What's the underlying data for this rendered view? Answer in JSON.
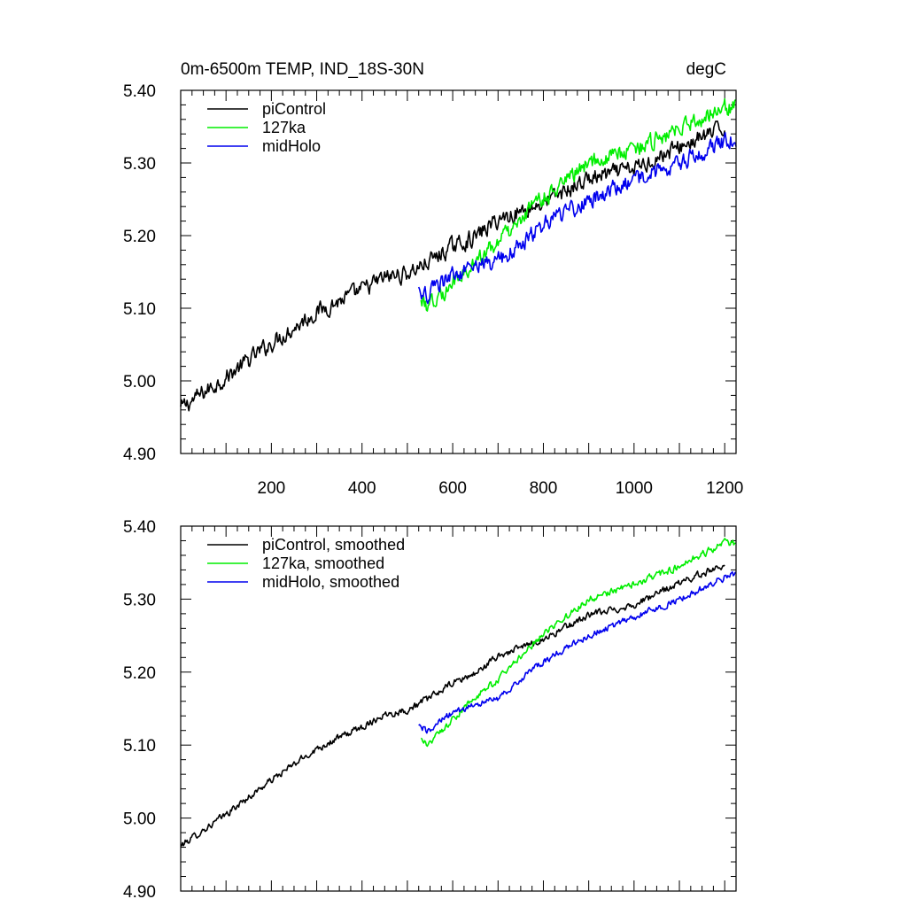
{
  "chart_data": [
    {
      "type": "line",
      "title": "0m-6500m TEMP, IND_18S-30N",
      "units": "degC",
      "xlim": [
        0,
        1225
      ],
      "ylim": [
        4.9,
        5.4
      ],
      "x_ticks": [
        200,
        400,
        600,
        800,
        1000,
        1200
      ],
      "x_tick_labels": [
        "200",
        "400",
        "600",
        "800",
        "1000",
        "1200"
      ],
      "y_ticks": [
        4.9,
        5.0,
        5.1,
        5.2,
        5.3,
        5.4
      ],
      "y_tick_labels": [
        "4.90",
        "5.00",
        "5.10",
        "5.20",
        "5.30",
        "5.40"
      ],
      "legend_position": "top-left",
      "series": [
        {
          "name": "piControl",
          "color": "#000000",
          "x_range": [
            0,
            1200
          ],
          "anchors": [
            [
              0,
              4.962
            ],
            [
              100,
              5.005
            ],
            [
              200,
              5.052
            ],
            [
              300,
              5.095
            ],
            [
              400,
              5.125
            ],
            [
              450,
              5.142
            ],
            [
              500,
              5.148
            ],
            [
              550,
              5.165
            ],
            [
              600,
              5.185
            ],
            [
              650,
              5.198
            ],
            [
              700,
              5.222
            ],
            [
              800,
              5.245
            ],
            [
              900,
              5.278
            ],
            [
              1000,
              5.292
            ],
            [
              1100,
              5.322
            ],
            [
              1200,
              5.348
            ]
          ],
          "noise": 0.01
        },
        {
          "name": "127ka",
          "color": "#00ee00",
          "x_range": [
            530,
            1225
          ],
          "anchors": [
            [
              530,
              5.108
            ],
            [
              545,
              5.102
            ],
            [
              600,
              5.135
            ],
            [
              650,
              5.165
            ],
            [
              700,
              5.19
            ],
            [
              800,
              5.252
            ],
            [
              900,
              5.3
            ],
            [
              1000,
              5.32
            ],
            [
              1100,
              5.345
            ],
            [
              1200,
              5.378
            ],
            [
              1225,
              5.376
            ]
          ],
          "noise": 0.01
        },
        {
          "name": "midHolo",
          "color": "#0000ee",
          "x_range": [
            525,
            1225
          ],
          "anchors": [
            [
              525,
              5.125
            ],
            [
              545,
              5.12
            ],
            [
              600,
              5.145
            ],
            [
              700,
              5.165
            ],
            [
              800,
              5.215
            ],
            [
              900,
              5.25
            ],
            [
              1000,
              5.275
            ],
            [
              1100,
              5.3
            ],
            [
              1200,
              5.33
            ],
            [
              1225,
              5.335
            ]
          ],
          "noise": 0.01
        }
      ]
    },
    {
      "type": "line",
      "xlim": [
        0,
        1225
      ],
      "ylim": [
        4.9,
        5.4
      ],
      "y_ticks": [
        4.9,
        5.0,
        5.1,
        5.2,
        5.3,
        5.4
      ],
      "y_tick_labels": [
        "4.90",
        "5.00",
        "5.10",
        "5.20",
        "5.30",
        "5.40"
      ],
      "legend_position": "top-left",
      "series": [
        {
          "name": "piControl, smoothed",
          "color": "#000000",
          "x_range": [
            0,
            1200
          ],
          "anchors": [
            [
              0,
              4.962
            ],
            [
              100,
              5.005
            ],
            [
              200,
              5.052
            ],
            [
              300,
              5.095
            ],
            [
              400,
              5.125
            ],
            [
              450,
              5.142
            ],
            [
              500,
              5.148
            ],
            [
              550,
              5.165
            ],
            [
              600,
              5.185
            ],
            [
              650,
              5.198
            ],
            [
              700,
              5.222
            ],
            [
              800,
              5.245
            ],
            [
              900,
              5.278
            ],
            [
              1000,
              5.292
            ],
            [
              1100,
              5.322
            ],
            [
              1200,
              5.348
            ]
          ],
          "noise": 0.004
        },
        {
          "name": "127ka, smoothed",
          "color": "#00ee00",
          "x_range": [
            530,
            1225
          ],
          "anchors": [
            [
              530,
              5.108
            ],
            [
              545,
              5.102
            ],
            [
              600,
              5.135
            ],
            [
              650,
              5.165
            ],
            [
              700,
              5.19
            ],
            [
              800,
              5.252
            ],
            [
              900,
              5.3
            ],
            [
              1000,
              5.32
            ],
            [
              1100,
              5.345
            ],
            [
              1200,
              5.378
            ],
            [
              1225,
              5.376
            ]
          ],
          "noise": 0.004
        },
        {
          "name": "midHolo, smoothed",
          "color": "#0000ee",
          "x_range": [
            525,
            1225
          ],
          "anchors": [
            [
              525,
              5.125
            ],
            [
              545,
              5.12
            ],
            [
              600,
              5.145
            ],
            [
              700,
              5.165
            ],
            [
              800,
              5.215
            ],
            [
              900,
              5.25
            ],
            [
              1000,
              5.275
            ],
            [
              1100,
              5.3
            ],
            [
              1200,
              5.33
            ],
            [
              1225,
              5.335
            ]
          ],
          "noise": 0.004
        }
      ]
    }
  ]
}
